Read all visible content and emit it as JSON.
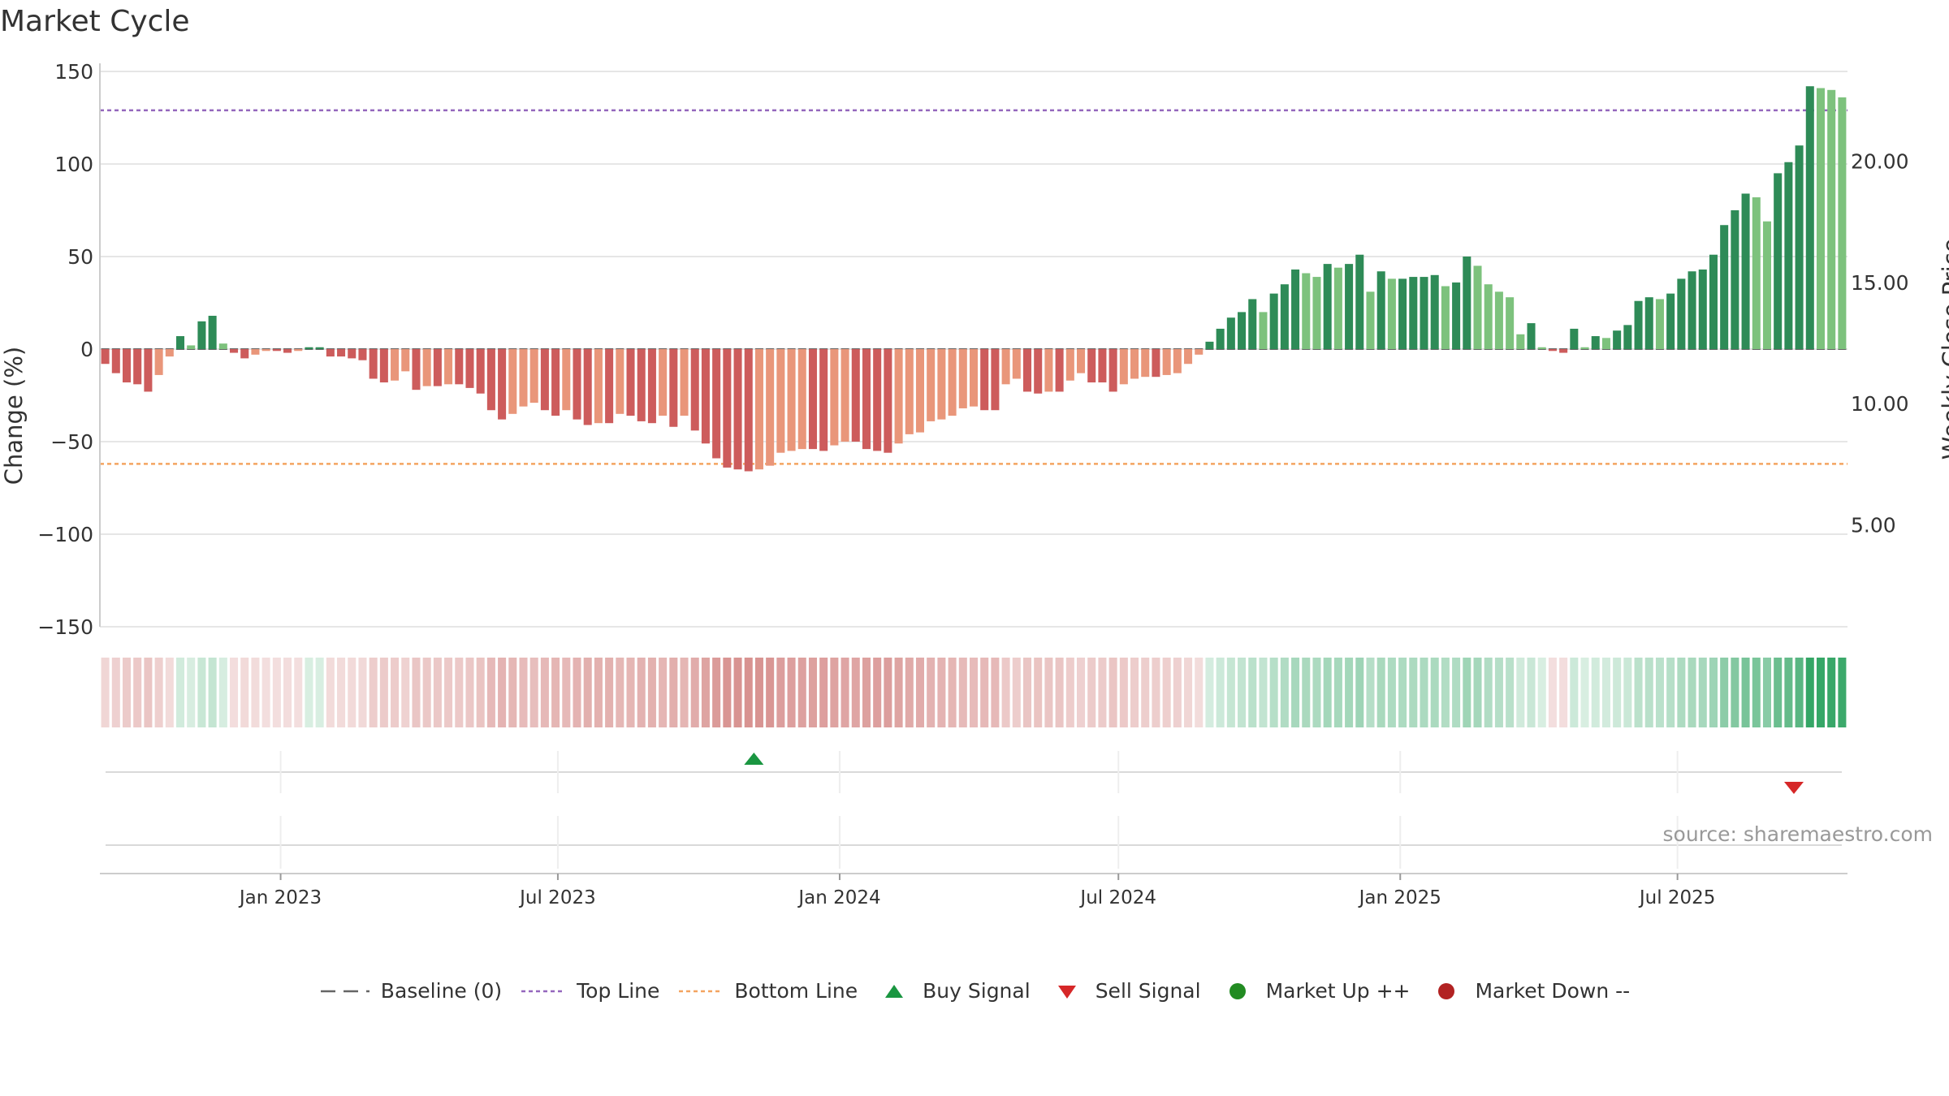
{
  "title": "Market Cycle",
  "source_text": "source: sharemaestro.com",
  "chart_data": {
    "type": "bar",
    "ylabel": "Change (%)",
    "y2label": "Weekly Close Price",
    "ylim": [
      -150,
      150
    ],
    "yticks": [
      150,
      100,
      50,
      0,
      -50,
      -100,
      -150
    ],
    "ytick_labels": [
      "150",
      "100",
      "50",
      "0",
      "−50",
      "−100",
      "−150"
    ],
    "y2ticks": [
      20,
      15,
      10,
      5
    ],
    "y2tick_labels": [
      "20.00",
      "15.00",
      "10.00",
      "5.00"
    ],
    "y2lim": [
      0.8,
      23.7
    ],
    "x_dates": [
      "2023-01-01",
      "2023-07-01",
      "2024-01-01",
      "2024-07-01",
      "2025-01-01",
      "2025-07-01"
    ],
    "xtick_labels": [
      "Jan 2023",
      "Jul 2023",
      "Jan 2024",
      "Jul 2024",
      "Jan 2025",
      "Jul 2025"
    ],
    "x_start": "2022-09-05",
    "x_end": "2025-10-20",
    "weekly_change": [
      -8,
      -13,
      -18,
      -19,
      -23,
      -14,
      -4,
      7,
      2,
      15,
      18,
      3,
      -2,
      -5,
      -3,
      -1,
      -1,
      -2,
      -1,
      1,
      1,
      -4,
      -4,
      -5,
      -6,
      -16,
      -18,
      -17,
      -12,
      -22,
      -20,
      -20,
      -19,
      -19,
      -21,
      -24,
      -33,
      -38,
      -35,
      -31,
      -29,
      -33,
      -36,
      -33,
      -38,
      -41,
      -40,
      -40,
      -35,
      -36,
      -39,
      -40,
      -36,
      -42,
      -36,
      -44,
      -51,
      -59,
      -64,
      -65,
      -66,
      -65,
      -63,
      -56,
      -55,
      -54,
      -54,
      -55,
      -52,
      -50,
      -50,
      -54,
      -55,
      -56,
      -51,
      -46,
      -45,
      -39,
      -38,
      -36,
      -32,
      -31,
      -33,
      -33,
      -19,
      -16,
      -23,
      -24,
      -23,
      -23,
      -17,
      -13,
      -18,
      -18,
      -23,
      -19,
      -16,
      -15,
      -15,
      -14,
      -13,
      -8,
      -3,
      4,
      11,
      17,
      20,
      27,
      20,
      30,
      35,
      43,
      41,
      39,
      46,
      44,
      46,
      51,
      31,
      42,
      38,
      38,
      39,
      39,
      40,
      34,
      36,
      50,
      45,
      35,
      31,
      28,
      8,
      14,
      1,
      -1,
      -2,
      11,
      1,
      7,
      6,
      10,
      13,
      26,
      28,
      27,
      30,
      38,
      42,
      43,
      51,
      67,
      75,
      84,
      82,
      69,
      95,
      101,
      110,
      142,
      141,
      140,
      136
    ],
    "top_line": 129,
    "bottom_line": -62,
    "signals": [
      {
        "type": "buy",
        "date": "2023-11-06"
      },
      {
        "type": "sell",
        "date": "2025-09-15"
      }
    ],
    "legend": [
      "Baseline (0)",
      "Top Line",
      "Bottom Line",
      "Buy Signal",
      "Sell Signal",
      "Market Up ++",
      "Market Down --"
    ],
    "colors": {
      "up_dark": "#2e8b57",
      "up_light": "#7dc27d",
      "down_dark": "#cd5c5c",
      "down_light": "#e9967a",
      "top_line": "#9467bd",
      "bottom_line": "#f4a460",
      "buy": "#1a9641",
      "sell": "#d62728",
      "market_up": "#228b22",
      "market_down": "#b22222",
      "baseline": "#666666"
    }
  },
  "legend_items": [
    {
      "label": "Baseline (0)",
      "icon": "dash-line-icon"
    },
    {
      "label": "Top Line",
      "icon": "dotted-line-icon"
    },
    {
      "label": "Bottom Line",
      "icon": "dotted-line-icon"
    },
    {
      "label": "Buy Signal",
      "icon": "triangle-up-icon"
    },
    {
      "label": "Sell Signal",
      "icon": "triangle-down-icon"
    },
    {
      "label": "Market Up ++",
      "icon": "circle-icon"
    },
    {
      "label": "Market Down --",
      "icon": "circle-icon"
    }
  ]
}
